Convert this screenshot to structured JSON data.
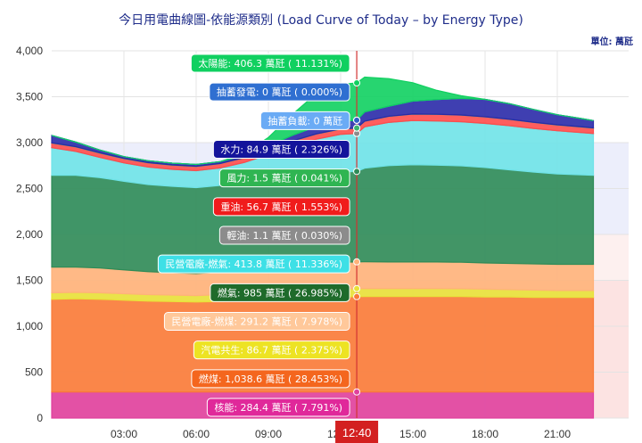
{
  "header": {
    "title": "今日用電曲線圖-依能源類別 (Load Curve of Today – by Energy Type)",
    "unit": "單位: 萬瓩"
  },
  "cursor_label": "12:40",
  "colors": {
    "band_blue": "#eceefb",
    "band_pink": "#fdf0ef",
    "band_red": "#fce3e2",
    "cursor_line": "#d33333",
    "cursor_box": "#d32020"
  },
  "chart_data": {
    "type": "area",
    "title": "今日用電曲線圖-依能源類別 (Load Curve of Today – by Energy Type)",
    "ylabel": "",
    "yunit": "萬瓩",
    "ylim": [
      0,
      4000
    ],
    "y_ticks": [
      "0",
      "500",
      "1,000",
      "1,500",
      "2,000",
      "2,500",
      "3,000",
      "3,500",
      "4,000"
    ],
    "x_ticks": [
      {
        "hour": 3,
        "label": "03:00"
      },
      {
        "hour": 6,
        "label": "06:00"
      },
      {
        "hour": 9,
        "label": "09:00"
      },
      {
        "hour": 12,
        "label": "12:00"
      },
      {
        "hour": 15,
        "label": "15:00"
      },
      {
        "hour": 18,
        "label": "18:00"
      },
      {
        "hour": 21,
        "label": "21:00"
      }
    ],
    "stacked": true,
    "x_hours": [
      0,
      1,
      2,
      3,
      4,
      5,
      6,
      7,
      8,
      9,
      10,
      11,
      12,
      12.67,
      13,
      14,
      15,
      16,
      17,
      18,
      19,
      20,
      21,
      22,
      22.5
    ],
    "series": [
      {
        "name": "核能",
        "color": "#e0409e",
        "values": [
          284,
          284,
          284,
          284,
          284,
          284,
          284,
          284,
          284,
          284,
          284,
          284,
          284,
          284.4,
          284,
          284,
          284,
          284,
          284,
          284,
          284,
          284,
          284,
          284,
          284
        ]
      },
      {
        "name": "燃煤",
        "color": "#f97b39",
        "values": [
          1010,
          1015,
          1010,
          1000,
          990,
          985,
          980,
          985,
          995,
          1005,
          1015,
          1025,
          1035,
          1038.6,
          1040,
          1040,
          1040,
          1040,
          1040,
          1035,
          1035,
          1030,
          1030,
          1030,
          1030
        ]
      },
      {
        "name": "汽電共生",
        "color": "#e8e23a",
        "values": [
          70,
          70,
          70,
          70,
          70,
          70,
          70,
          75,
          80,
          85,
          86,
          86,
          86,
          86.7,
          86,
          86,
          86,
          86,
          85,
          85,
          80,
          80,
          75,
          75,
          75
        ]
      },
      {
        "name": "民營電廠-燃煤",
        "color": "#ffb27a",
        "values": [
          280,
          275,
          270,
          260,
          250,
          245,
          240,
          245,
          255,
          270,
          280,
          287,
          290,
          291.2,
          292,
          290,
          290,
          290,
          288,
          285,
          285,
          285,
          285,
          285,
          285
        ]
      },
      {
        "name": "燃氣",
        "color": "#2e8b57",
        "values": [
          1000,
          1000,
          985,
          965,
          950,
          940,
          935,
          945,
          960,
          975,
          985,
          985,
          985,
          985,
          1020,
          1050,
          1060,
          1055,
          1050,
          1040,
          1020,
          1000,
          985,
          975,
          970
        ]
      },
      {
        "name": "民營電廠-燃氣",
        "color": "#6fe3e8",
        "values": [
          300,
          260,
          220,
          200,
          190,
          185,
          185,
          190,
          210,
          250,
          310,
          370,
          410,
          413.8,
          450,
          470,
          480,
          480,
          480,
          480,
          480,
          475,
          470,
          460,
          455
        ]
      },
      {
        "name": "輕油",
        "color": "#8c8c8c",
        "values": [
          1,
          1,
          1,
          1,
          1,
          1,
          1,
          1,
          1,
          1,
          1,
          1,
          1,
          1.1,
          1,
          1,
          1,
          1,
          1,
          1,
          1,
          1,
          1,
          1,
          1
        ]
      },
      {
        "name": "重油",
        "color": "#ff4d4d",
        "values": [
          50,
          48,
          46,
          45,
          45,
          45,
          45,
          46,
          50,
          54,
          56,
          56,
          56,
          56.7,
          60,
          65,
          70,
          72,
          72,
          70,
          68,
          65,
          62,
          60,
          58
        ]
      },
      {
        "name": "風力",
        "color": "#3cb371",
        "values": [
          3,
          3,
          3,
          3,
          3,
          2,
          2,
          2,
          2,
          2,
          2,
          2,
          2,
          1.5,
          1,
          1,
          1,
          1,
          1,
          1,
          2,
          2,
          2,
          2,
          2
        ]
      },
      {
        "name": "水力",
        "color": "#2a2aa8",
        "values": [
          80,
          50,
          30,
          20,
          20,
          20,
          20,
          20,
          25,
          40,
          60,
          80,
          84,
          84.9,
          100,
          110,
          140,
          160,
          180,
          190,
          170,
          140,
          110,
          90,
          80
        ]
      },
      {
        "name": "抽蓄負載",
        "color": "#8fc3f7",
        "values": [
          0,
          0,
          0,
          0,
          0,
          0,
          0,
          0,
          0,
          0,
          0,
          0,
          0,
          0,
          0,
          0,
          0,
          0,
          0,
          0,
          0,
          0,
          0,
          0,
          0
        ]
      },
      {
        "name": "抽蓄發電",
        "color": "#2f5fc7",
        "values": [
          0,
          0,
          0,
          0,
          0,
          0,
          0,
          0,
          0,
          0,
          0,
          0,
          0,
          0,
          0,
          0,
          0,
          0,
          0,
          0,
          0,
          0,
          0,
          0,
          0
        ]
      },
      {
        "name": "太陽能",
        "color": "#10d060",
        "values": [
          0,
          0,
          0,
          0,
          0,
          0,
          0,
          0,
          20,
          90,
          230,
          360,
          400,
          406.3,
          380,
          300,
          200,
          100,
          30,
          0,
          0,
          0,
          0,
          0,
          0
        ]
      }
    ],
    "tooltip": [
      {
        "text": "太陽能: 406.3 萬瓩 ( 11.131%)",
        "bg": "#10d060",
        "fg": "#ffffff"
      },
      {
        "text": "抽蓄發電: 0 萬瓩 ( 0.000%)",
        "bg": "#2f6fd1",
        "fg": "#ffffff"
      },
      {
        "text": "抽蓄負載: 0 萬瓩",
        "bg": "#6aabf5",
        "fg": "#ffffff"
      },
      {
        "text": "水力: 84.9 萬瓩 ( 2.326%)",
        "bg": "#14149b",
        "fg": "#ffffff"
      },
      {
        "text": "風力: 1.5 萬瓩 ( 0.041%)",
        "bg": "#2fb552",
        "fg": "#ffffff"
      },
      {
        "text": "重油: 56.7 萬瓩 ( 1.553%)",
        "bg": "#f01c1c",
        "fg": "#ffffff"
      },
      {
        "text": "輕油: 1.1 萬瓩 ( 0.030%)",
        "bg": "#8c8c8c",
        "fg": "#ffffff"
      },
      {
        "text": "民營電廠-燃氣: 413.8 萬瓩 ( 11.336%)",
        "bg": "#3ee0e6",
        "fg": "#ffffff"
      },
      {
        "text": "燃氣: 985 萬瓩 ( 26.985%)",
        "bg": "#1f6b2b",
        "fg": "#ffffff"
      },
      {
        "text": "民營電廠-燃煤: 291.2 萬瓩 ( 7.978%)",
        "bg": "#ffc89a",
        "fg": "#ffffff"
      },
      {
        "text": "汽電共生: 86.7 萬瓩 ( 2.375%)",
        "bg": "#ede323",
        "fg": "#ffffff"
      },
      {
        "text": "燃煤: 1,038.6 萬瓩 ( 28.453%)",
        "bg": "#f4661e",
        "fg": "#ffffff"
      },
      {
        "text": "核能: 284.4 萬瓩 ( 7.791%)",
        "bg": "#e0289a",
        "fg": "#ffffff"
      }
    ]
  }
}
